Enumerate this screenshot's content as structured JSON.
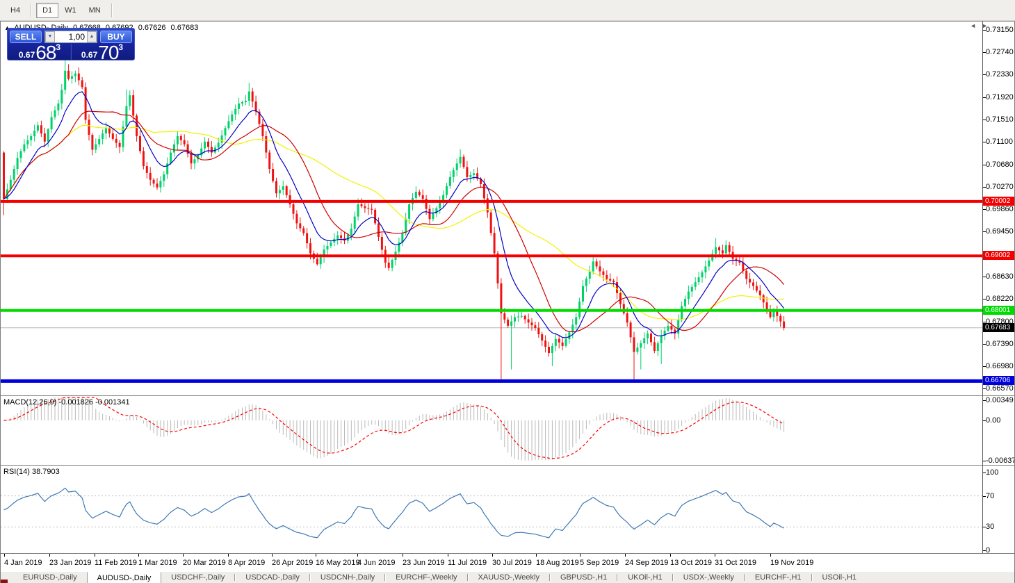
{
  "toolbar": {
    "timeframes": [
      {
        "label": "H4",
        "active": false
      },
      {
        "label": "D1",
        "active": true
      },
      {
        "label": "W1",
        "active": false
      },
      {
        "label": "MN",
        "active": false
      }
    ]
  },
  "chart": {
    "marker_icon": "▲",
    "symbol": "AUDUSD-,Daily",
    "ohlc": {
      "open": "0.67668",
      "high": "0.67692",
      "low": "0.67626",
      "close": "0.67683"
    },
    "trade_panel": {
      "sell_label": "SELL",
      "buy_label": "BUY",
      "volume": "1,00",
      "spin_down_icon": "▼",
      "spin_up_icon": "▲",
      "bid": {
        "prefix": "0.67",
        "big": "68",
        "sup": "3"
      },
      "ask": {
        "prefix": "0.67",
        "big": "70",
        "sup": "3"
      }
    },
    "y_axis_labels": [
      "0.73150",
      "0.72740",
      "0.72330",
      "0.71920",
      "0.71510",
      "0.71100",
      "0.70680",
      "0.70270",
      "0.69860",
      "0.69450",
      "0.68630",
      "0.68220",
      "0.67800",
      "0.67390",
      "0.66980",
      "0.66570"
    ],
    "x_axis_labels": [
      "4 Jan 2019",
      "23 Jan 2019",
      "11 Feb 2019",
      "1 Mar 2019",
      "20 Mar 2019",
      "8 Apr 2019",
      "26 Apr 2019",
      "16 May 2019",
      "4 Jun 2019",
      "23 Jun 2019",
      "11 Jul 2019",
      "30 Jul 2019",
      "18 Aug 2019",
      "5 Sep 2019",
      "24 Sep 2019",
      "13 Oct 2019",
      "31 Oct 2019",
      "19 Nov 2019"
    ],
    "levels": [
      {
        "label": "0.70002",
        "value": 0.70002,
        "color": "#F40000",
        "width": 4
      },
      {
        "label": "0.69002",
        "value": 0.69002,
        "color": "#F40000",
        "width": 4
      },
      {
        "label": "0.68001",
        "value": 0.68001,
        "color": "#00DC00",
        "width": 4
      },
      {
        "label": "0.66706",
        "value": 0.66706,
        "color": "#0000DE",
        "width": 5
      }
    ],
    "current_price": {
      "label": "0.67683",
      "value": 0.67683
    },
    "candle_count": 230,
    "first_open": 0.709,
    "price_path": [
      [
        0,
        0.7005
      ],
      [
        2,
        0.704
      ],
      [
        4,
        0.708
      ],
      [
        6,
        0.7105
      ],
      [
        8,
        0.712
      ],
      [
        10,
        0.714
      ],
      [
        12,
        0.711
      ],
      [
        14,
        0.7155
      ],
      [
        16,
        0.718
      ],
      [
        17,
        0.7205
      ],
      [
        18,
        0.724
      ],
      [
        19,
        0.7225
      ],
      [
        21,
        0.7235
      ],
      [
        23,
        0.721
      ],
      [
        24,
        0.715
      ],
      [
        26,
        0.7095
      ],
      [
        28,
        0.7115
      ],
      [
        30,
        0.7135
      ],
      [
        32,
        0.7115
      ],
      [
        34,
        0.71
      ],
      [
        36,
        0.7175
      ],
      [
        37,
        0.7195
      ],
      [
        39,
        0.712
      ],
      [
        41,
        0.7065
      ],
      [
        43,
        0.704
      ],
      [
        45,
        0.7026
      ],
      [
        47,
        0.705
      ],
      [
        49,
        0.709
      ],
      [
        51,
        0.712
      ],
      [
        53,
        0.7105
      ],
      [
        55,
        0.707
      ],
      [
        57,
        0.7085
      ],
      [
        59,
        0.711
      ],
      [
        61,
        0.709
      ],
      [
        63,
        0.7108
      ],
      [
        65,
        0.7135
      ],
      [
        67,
        0.716
      ],
      [
        69,
        0.718
      ],
      [
        71,
        0.7185
      ],
      [
        72,
        0.7202
      ],
      [
        74,
        0.7165
      ],
      [
        76,
        0.712
      ],
      [
        78,
        0.706
      ],
      [
        80,
        0.7015
      ],
      [
        82,
        0.7028
      ],
      [
        84,
        0.6995
      ],
      [
        86,
        0.696
      ],
      [
        88,
        0.6942
      ],
      [
        90,
        0.6905
      ],
      [
        92,
        0.6885
      ],
      [
        94,
        0.6912
      ],
      [
        96,
        0.6925
      ],
      [
        98,
        0.6938
      ],
      [
        100,
        0.6928
      ],
      [
        102,
        0.695
      ],
      [
        104,
        0.6995
      ],
      [
        106,
        0.6988
      ],
      [
        108,
        0.6985
      ],
      [
        110,
        0.6935
      ],
      [
        112,
        0.6888
      ],
      [
        113,
        0.6878
      ],
      [
        115,
        0.6908
      ],
      [
        117,
        0.6942
      ],
      [
        119,
        0.6995
      ],
      [
        121,
        0.7018
      ],
      [
        123,
        0.7005
      ],
      [
        125,
        0.6968
      ],
      [
        127,
        0.6988
      ],
      [
        129,
        0.7012
      ],
      [
        131,
        0.7045
      ],
      [
        133,
        0.707
      ],
      [
        134,
        0.7082
      ],
      [
        136,
        0.7045
      ],
      [
        138,
        0.7052
      ],
      [
        140,
        0.7032
      ],
      [
        142,
        0.698
      ],
      [
        144,
        0.6905
      ],
      [
        146,
        0.6795
      ],
      [
        148,
        0.6772
      ],
      [
        150,
        0.6788
      ],
      [
        152,
        0.679
      ],
      [
        154,
        0.6778
      ],
      [
        156,
        0.6768
      ],
      [
        158,
        0.6745
      ],
      [
        160,
        0.6722
      ],
      [
        162,
        0.6748
      ],
      [
        164,
        0.6735
      ],
      [
        166,
        0.676
      ],
      [
        168,
        0.6788
      ],
      [
        170,
        0.6845
      ],
      [
        172,
        0.6872
      ],
      [
        173,
        0.689
      ],
      [
        175,
        0.6872
      ],
      [
        177,
        0.6858
      ],
      [
        179,
        0.6852
      ],
      [
        181,
        0.6812
      ],
      [
        183,
        0.6778
      ],
      [
        185,
        0.6724
      ],
      [
        187,
        0.674
      ],
      [
        189,
        0.6758
      ],
      [
        191,
        0.6726
      ],
      [
        193,
        0.6754
      ],
      [
        195,
        0.6772
      ],
      [
        197,
        0.6758
      ],
      [
        199,
        0.6808
      ],
      [
        201,
        0.6835
      ],
      [
        203,
        0.6852
      ],
      [
        205,
        0.687
      ],
      [
        207,
        0.6892
      ],
      [
        209,
        0.6916
      ],
      [
        211,
        0.6905
      ],
      [
        212,
        0.692
      ],
      [
        214,
        0.6895
      ],
      [
        216,
        0.6888
      ],
      [
        218,
        0.6858
      ],
      [
        220,
        0.6845
      ],
      [
        222,
        0.6828
      ],
      [
        224,
        0.6802
      ],
      [
        225,
        0.6788
      ],
      [
        226,
        0.6798
      ],
      [
        227,
        0.679
      ],
      [
        228,
        0.678
      ],
      [
        229,
        0.67683
      ]
    ],
    "special_wicks": [
      [
        0,
        "l",
        0.6975
      ],
      [
        18,
        "h",
        0.7262
      ],
      [
        19,
        "h",
        0.7252
      ],
      [
        36,
        "h",
        0.7206
      ],
      [
        72,
        "h",
        0.7218
      ],
      [
        104,
        "h",
        0.7006
      ],
      [
        134,
        "h",
        0.7096
      ],
      [
        146,
        "l",
        0.6674
      ],
      [
        149,
        "l",
        0.6692
      ],
      [
        161,
        "l",
        0.6698
      ],
      [
        185,
        "l",
        0.6672
      ],
      [
        187,
        "l",
        0.6692
      ],
      [
        193,
        "l",
        0.6702
      ],
      [
        209,
        "h",
        0.6933
      ],
      [
        212,
        "h",
        0.6929
      ]
    ]
  },
  "macd": {
    "name": "MACD(12,26,9)",
    "value_main": "-0.001826",
    "value_signal": "-0.001341",
    "axis": [
      {
        "label": "0.00349",
        "value": 0.00349
      },
      {
        "label": "0.00",
        "value": 0
      },
      {
        "label": "-0.00637",
        "value": -0.00637
      }
    ]
  },
  "rsi": {
    "name": "RSI(14)",
    "value": "38.7903",
    "axis": [
      {
        "label": "100",
        "value": 100
      },
      {
        "label": "70",
        "value": 70
      },
      {
        "label": "30",
        "value": 30
      },
      {
        "label": "0",
        "value": 0
      }
    ],
    "level_lines": [
      70,
      30
    ]
  },
  "tabs": [
    {
      "label": "EURUSD-,Daily",
      "active": false
    },
    {
      "label": "AUDUSD-,Daily",
      "active": true
    },
    {
      "label": "USDCHF-,Daily",
      "active": false
    },
    {
      "label": "USDCAD-,Daily",
      "active": false
    },
    {
      "label": "USDCNH-,Daily",
      "active": false
    },
    {
      "label": "EURCHF-,Weekly",
      "active": false
    },
    {
      "label": "XAUUSD-,Weekly",
      "active": false
    },
    {
      "label": "GBPUSD-,H1",
      "active": false
    },
    {
      "label": "UKOil-,H1",
      "active": false
    },
    {
      "label": "USDX-,Weekly",
      "active": false
    },
    {
      "label": "EURCHF-,H1",
      "active": false
    },
    {
      "label": "USOil-,H1",
      "active": false
    }
  ],
  "tab_arrows": {
    "left": "◄",
    "right": "►"
  },
  "colors": {
    "bull": "#00D26A",
    "bear": "#EF1212",
    "ma_fast": "#0000C8",
    "ma_mid": "#CE0000",
    "ma_slow": "#F2F200",
    "macd_hist": "#B9B9B9",
    "macd_signal": "#FF0000",
    "rsi_line": "#3E78B4",
    "rsi_levels": "#BDBDBD",
    "current_line": "#B4B4B4",
    "current_badge": "#000000"
  }
}
